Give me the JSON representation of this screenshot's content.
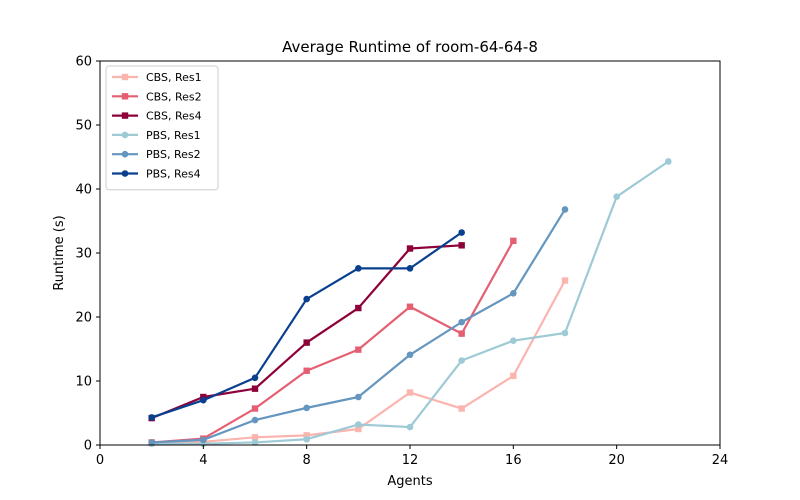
{
  "chart_data": {
    "type": "line",
    "title": "Average Runtime of room-64-64-8",
    "xlabel": "Agents",
    "ylabel": "Runtime (s)",
    "xlim": [
      0,
      24
    ],
    "ylim": [
      0,
      60
    ],
    "xticks": [
      0,
      4,
      8,
      12,
      16,
      20,
      24
    ],
    "yticks": [
      0,
      10,
      20,
      30,
      40,
      50,
      60
    ],
    "grid": false,
    "legend_position": "top-left",
    "series": [
      {
        "name": "CBS, Res1",
        "color": "#fbb4ae",
        "marker": "square",
        "x": [
          2,
          4,
          6,
          8,
          10,
          12,
          14,
          16,
          18
        ],
        "y": [
          0.3,
          0.5,
          1.2,
          1.5,
          2.5,
          8.2,
          5.7,
          10.8,
          25.7
        ]
      },
      {
        "name": "CBS, Res2",
        "color": "#e55f73",
        "marker": "square",
        "x": [
          2,
          4,
          6,
          8,
          10,
          12,
          14,
          16
        ],
        "y": [
          0.4,
          1.0,
          5.7,
          11.6,
          14.9,
          21.6,
          17.4,
          31.9
        ]
      },
      {
        "name": "CBS, Res4",
        "color": "#8e0038",
        "marker": "square",
        "x": [
          2,
          4,
          6,
          8,
          10,
          12,
          14
        ],
        "y": [
          4.2,
          7.5,
          8.8,
          16.0,
          21.4,
          30.7,
          31.2
        ]
      },
      {
        "name": "PBS, Res1",
        "color": "#9ecad6",
        "marker": "circle",
        "x": [
          2,
          4,
          6,
          8,
          10,
          12,
          14,
          16,
          18,
          20,
          22
        ],
        "y": [
          0.2,
          0.2,
          0.4,
          0.9,
          3.2,
          2.8,
          13.2,
          16.3,
          17.5,
          38.8,
          44.3
        ]
      },
      {
        "name": "PBS, Res2",
        "color": "#6496bf",
        "marker": "circle",
        "x": [
          2,
          4,
          6,
          8,
          10,
          12,
          14,
          16,
          18
        ],
        "y": [
          0.4,
          0.8,
          3.9,
          5.8,
          7.5,
          14.1,
          19.2,
          23.7,
          36.8
        ]
      },
      {
        "name": "PBS, Res4",
        "color": "#08408f",
        "marker": "circle",
        "x": [
          2,
          4,
          6,
          8,
          10,
          12,
          14
        ],
        "y": [
          4.3,
          7.0,
          10.5,
          22.8,
          27.6,
          27.6,
          33.2
        ]
      }
    ]
  }
}
